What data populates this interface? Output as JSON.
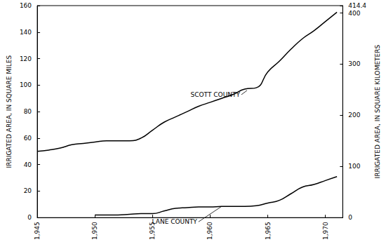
{
  "chart_data": {
    "type": "line",
    "y_label": "IRRIGATED AREA, IN SQUARE MILES",
    "y2_label": "IRRIGATED AREA, IN SQUARE KILOMETERS",
    "x": [
      1945,
      1946,
      1947,
      1948,
      1949,
      1950,
      1951,
      1952,
      1953,
      1954,
      1955,
      1956,
      1957,
      1958,
      1959,
      1960,
      1961,
      1962,
      1963,
      1964,
      1965,
      1966,
      1967,
      1968,
      1969,
      1970,
      1971
    ],
    "series": [
      {
        "name": "SCOTT COUNTY",
        "color": "#000000",
        "values": [
          50,
          51,
          52.5,
          55,
          56,
          57,
          58,
          58,
          58,
          60,
          66,
          72,
          76,
          80,
          84,
          87,
          90,
          93,
          97,
          98,
          110,
          118,
          127,
          135,
          141,
          148,
          155
        ]
      },
      {
        "name": "LANE COUNTY",
        "color": "#000000",
        "values": [
          null,
          null,
          null,
          null,
          null,
          2,
          2,
          2,
          2.5,
          3,
          3,
          5,
          7,
          7.5,
          8,
          8,
          8.5,
          8.5,
          8.5,
          9,
          11,
          13,
          18,
          23,
          25,
          28,
          31
        ]
      }
    ],
    "annotations": [
      {
        "text": "SCOTT COUNTY",
        "x": 1963.2,
        "y": 96
      },
      {
        "text": "LANE COUNTY",
        "x": 1961,
        "y": 8.5
      }
    ],
    "xlim": [
      1945,
      1971.5
    ],
    "xticks": [
      1945,
      1950,
      1955,
      1960,
      1965,
      1970
    ],
    "ylim": [
      0,
      160
    ],
    "yticks": [
      0,
      20,
      40,
      60,
      80,
      100,
      120,
      140,
      160
    ],
    "y2lim": [
      0,
      414.4
    ],
    "y2ticks": [
      0,
      100,
      200,
      300,
      400
    ],
    "grid": false
  }
}
